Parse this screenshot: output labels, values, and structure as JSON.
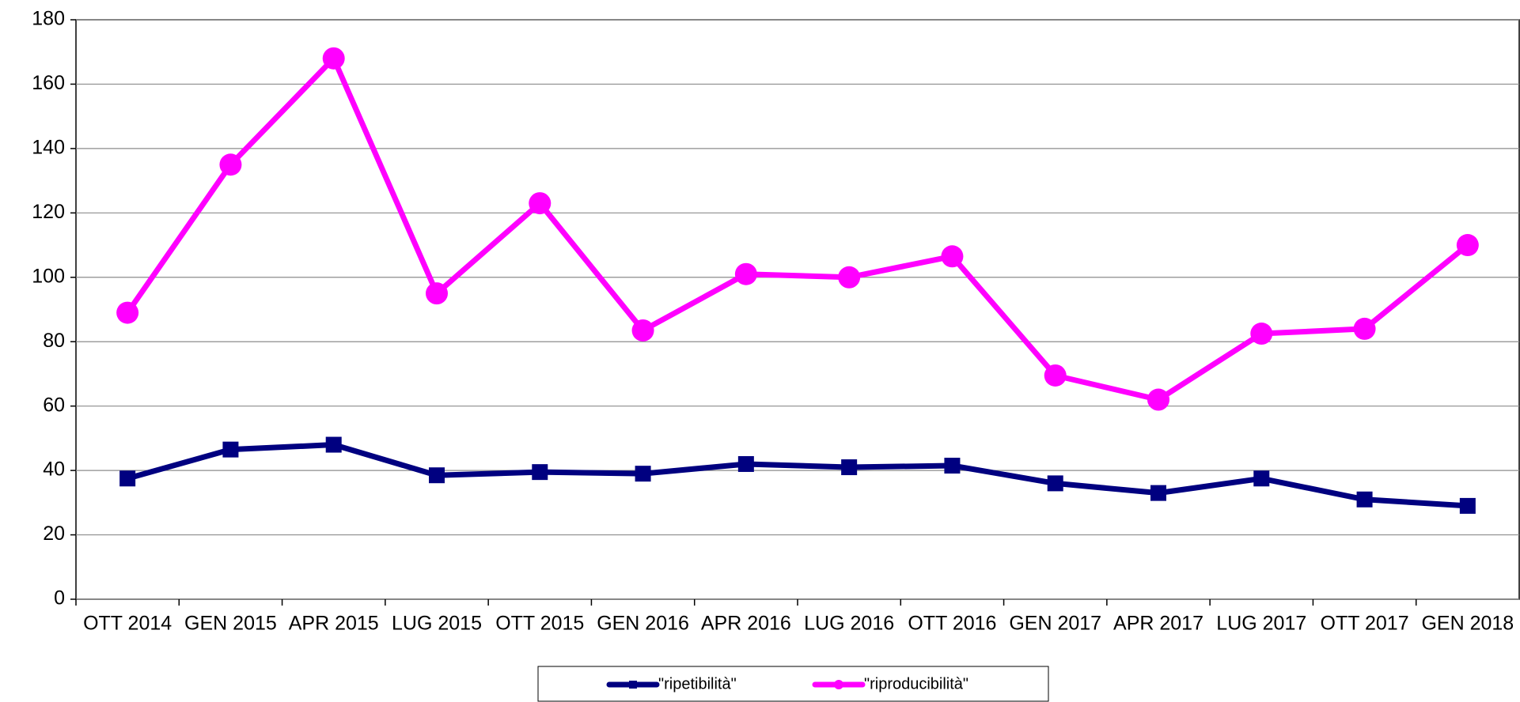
{
  "chart_data": {
    "type": "line",
    "categories": [
      "OTT 2014",
      "GEN 2015",
      "APR 2015",
      "LUG 2015",
      "OTT 2015",
      "GEN 2016",
      "APR 2016",
      "LUG 2016",
      "OTT 2016",
      "GEN 2017",
      "APR 2017",
      "LUG 2017",
      "OTT 2017",
      "GEN 2018"
    ],
    "series": [
      {
        "name": "\"ripetibilità\"",
        "color": "#000080",
        "marker": "square",
        "values": [
          37.5,
          46.5,
          48,
          38.5,
          39.5,
          39,
          42,
          41,
          41.5,
          36,
          33,
          37.5,
          31,
          29
        ]
      },
      {
        "name": "\"riproducibilità\"",
        "color": "#ff00ff",
        "marker": "circle",
        "values": [
          89,
          135,
          168,
          95,
          123,
          83.5,
          101,
          100,
          106.5,
          69.5,
          62,
          82.5,
          84,
          110
        ]
      }
    ],
    "ylim": [
      0,
      180
    ],
    "yticks": [
      0,
      20,
      40,
      60,
      80,
      100,
      120,
      140,
      160,
      180
    ],
    "grid": true,
    "legend": "bottom"
  }
}
